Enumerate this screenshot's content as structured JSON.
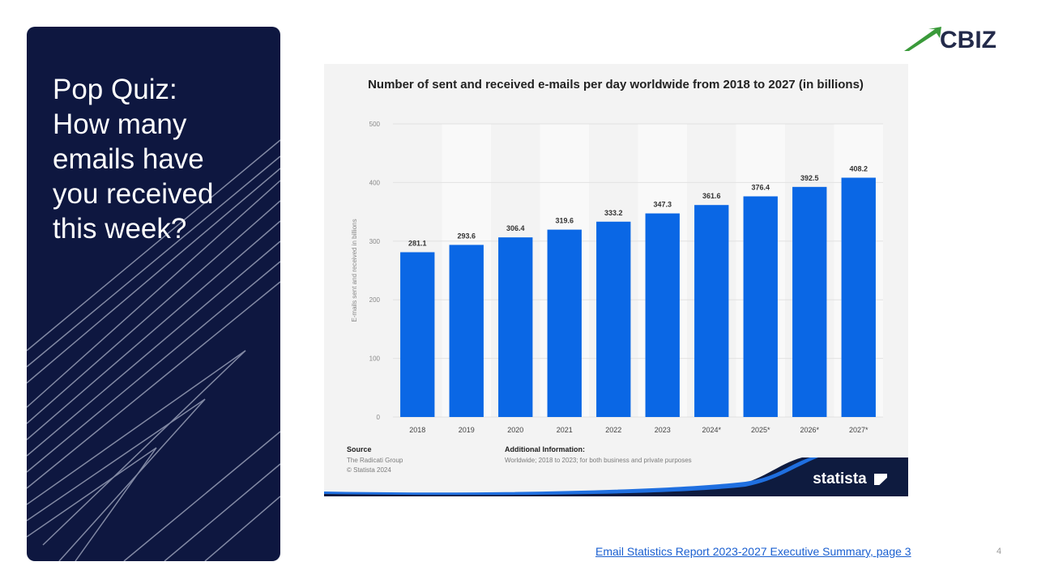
{
  "slide": {
    "question": "Pop Quiz:\nHow many\nemails have\nyou received\nthis week?",
    "brand": "CBIZ",
    "footer_link": "Email Statistics Report 2023-2027 Executive Summary, page 3",
    "page_number": "4",
    "panel_color": "#0e1740",
    "accent_green": "#3a9a3a"
  },
  "chart_source": {
    "source_label": "Source",
    "source_lines": [
      "The Radicati Group",
      "© Statista 2024"
    ],
    "additional_label": "Additional Information:",
    "additional_text": "Worldwide; 2018 to 2023; for both business and private purposes",
    "watermark": "statista"
  },
  "chart_data": {
    "type": "bar",
    "title": "Number of sent and received e-mails per day worldwide from 2018 to 2027 (in billions)",
    "ylabel": "E-mails sent and received in billions",
    "xlabel": "",
    "categories": [
      "2018",
      "2019",
      "2020",
      "2021",
      "2022",
      "2023",
      "2024*",
      "2025*",
      "2026*",
      "2027*"
    ],
    "values": [
      281.1,
      293.6,
      306.4,
      319.6,
      333.2,
      347.3,
      361.6,
      376.4,
      392.5,
      408.2
    ],
    "value_labels": [
      "281.1",
      "293.6",
      "306.4",
      "319.6",
      "333.2",
      "347.3",
      "361.6",
      "376.4",
      "392.5",
      "408.2"
    ],
    "yticks": [
      "0",
      "100",
      "200",
      "300",
      "400",
      "500"
    ],
    "ylim": [
      0,
      500
    ],
    "grid": true,
    "bar_color": "#0a67e5"
  }
}
